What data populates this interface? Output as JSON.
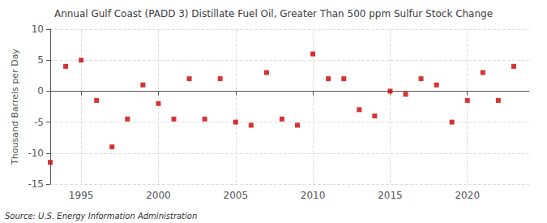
{
  "chart_data": {
    "type": "scatter",
    "title": "Annual Gulf Coast (PADD 3) Distillate Fuel Oil, Greater Than 500 ppm Sulfur Stock Change",
    "ylabel": "Thousand Barrels per Day",
    "source": "Source: U.S. Energy Information Administration",
    "color": "#cc0000",
    "marker": "square",
    "x": [
      1993,
      1994,
      1995,
      1996,
      1997,
      1998,
      1999,
      2000,
      2001,
      2002,
      2003,
      2004,
      2005,
      2006,
      2007,
      2008,
      2009,
      2010,
      2011,
      2012,
      2013,
      2014,
      2015,
      2016,
      2017,
      2018,
      2019,
      2020,
      2021,
      2022,
      2023
    ],
    "values": [
      -11.5,
      4.0,
      5.0,
      -1.5,
      -9.0,
      -4.5,
      1.0,
      -2.0,
      -4.5,
      2.0,
      -4.5,
      2.0,
      -5.0,
      -5.5,
      3.0,
      -4.5,
      -5.5,
      6.0,
      2.0,
      2.0,
      -3.0,
      -4.0,
      0.0,
      -0.5,
      2.0,
      1.0,
      -5.0,
      -1.5,
      3.0,
      -1.5,
      4.0
    ],
    "xlim": [
      1993,
      2024
    ],
    "xticks": [
      1995,
      2000,
      2005,
      2010,
      2015,
      2020
    ],
    "ylim": [
      -15,
      10
    ],
    "yticks": [
      -15,
      -10,
      -5,
      0,
      5,
      10
    ],
    "grid": true
  }
}
